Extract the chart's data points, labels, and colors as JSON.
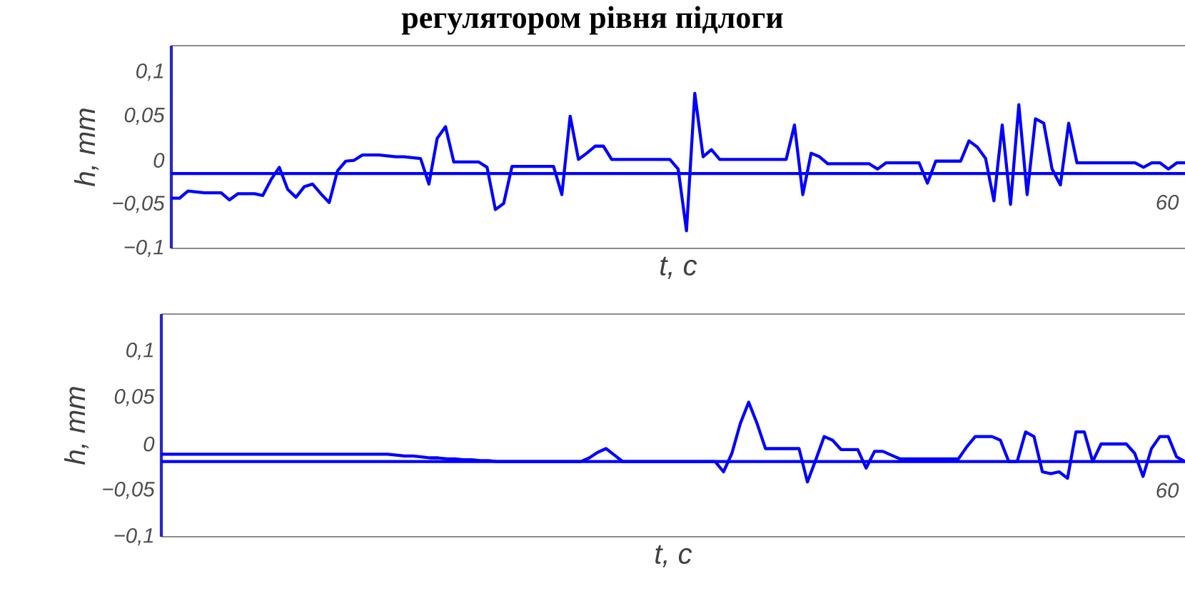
{
  "chart_data": [
    {
      "type": "line",
      "title": "регулятором рівня підлоги",
      "xlabel": "t, c",
      "ylabel": "h, mm",
      "annotations": [
        "60"
      ],
      "ylim": [
        -0.1,
        0.13
      ],
      "categories": [
        null,
        null,
        null,
        null,
        null,
        null,
        null,
        null,
        null,
        null,
        null,
        null,
        null,
        null,
        null,
        null,
        null,
        null,
        null,
        null,
        null,
        null,
        null,
        null,
        null,
        null,
        null,
        null,
        null,
        null,
        null,
        null,
        null,
        null,
        null,
        null,
        null,
        null,
        null,
        null,
        null,
        null,
        null,
        null,
        null,
        null,
        null,
        null,
        null,
        null,
        null,
        null,
        null,
        null,
        null,
        null,
        null,
        null,
        null,
        null,
        null,
        null,
        null,
        null,
        null,
        null,
        null,
        null,
        null,
        null,
        null,
        null,
        null,
        null,
        null,
        null,
        null,
        null,
        null,
        null,
        null,
        null,
        null,
        null,
        null,
        null,
        null,
        null,
        null,
        null,
        null,
        null,
        null,
        null,
        null,
        null,
        null,
        null,
        null,
        null,
        null,
        null,
        null,
        null,
        null,
        null,
        null,
        null,
        null,
        null,
        null,
        null,
        null,
        null,
        null,
        null,
        null,
        null,
        null,
        null,
        null,
        null,
        null
      ],
      "yticks": [
        {
          "value": -0.1,
          "label": "−0,1"
        },
        {
          "value": -0.05,
          "label": "−0,05"
        },
        {
          "value": 0,
          "label": "0"
        },
        {
          "value": 0.05,
          "label": "0,05"
        },
        {
          "value": 0.1,
          "label": "0,1"
        }
      ],
      "ref_lines": [
        {
          "axis": "y",
          "value": -0.015,
          "color": "#0000ff"
        }
      ],
      "series": [
        {
          "color": "#0000ff",
          "values": [
            -0.043,
            -0.043,
            -0.035,
            -0.036,
            -0.037,
            -0.037,
            -0.037,
            -0.045,
            -0.038,
            -0.038,
            -0.038,
            -0.04,
            -0.022,
            -0.008,
            -0.033,
            -0.042,
            -0.03,
            -0.027,
            -0.038,
            -0.048,
            -0.012,
            -0.001,
            0,
            0.006,
            0.006,
            0.006,
            0.005,
            0.004,
            0.004,
            0.003,
            0.002,
            -0.027,
            0.025,
            0.038,
            -0.002,
            -0.002,
            -0.002,
            -0.002,
            -0.008,
            -0.056,
            -0.049,
            -0.007,
            -0.007,
            -0.007,
            -0.007,
            -0.007,
            -0.007,
            -0.039,
            0.05,
            0.001,
            0.008,
            0.016,
            0.016,
            0.001,
            0.001,
            0.001,
            0.001,
            0.001,
            0.001,
            0.001,
            0.001,
            -0.01,
            -0.08,
            0.076,
            0.004,
            0.012,
            0.001,
            0.001,
            0.001,
            0.001,
            0.001,
            0.001,
            0.001,
            0.001,
            0.001,
            0.04,
            -0.039,
            0.008,
            0.004,
            -0.004,
            -0.004,
            -0.004,
            -0.004,
            -0.004,
            -0.004,
            -0.01,
            -0.003,
            -0.003,
            -0.003,
            -0.003,
            -0.003,
            -0.026,
            -0.001,
            -0.001,
            -0.001,
            -0.001,
            0.022,
            0.015,
            0.002,
            -0.046,
            0.04,
            -0.05,
            0.063,
            -0.039,
            0.047,
            0.042,
            -0.01,
            -0.028,
            0.042,
            -0.003,
            -0.003,
            -0.003,
            -0.003,
            -0.003,
            -0.003,
            -0.003,
            -0.003,
            -0.008,
            -0.003,
            -0.003,
            -0.01,
            -0.003,
            -0.003
          ]
        }
      ]
    },
    {
      "type": "line",
      "xlabel": "t, c",
      "ylabel": "h, mm",
      "annotations": [
        "60"
      ],
      "ylim": [
        -0.1,
        0.14
      ],
      "categories": [
        null,
        null,
        null,
        null,
        null,
        null,
        null,
        null,
        null,
        null,
        null,
        null,
        null,
        null,
        null,
        null,
        null,
        null,
        null,
        null,
        null,
        null,
        null,
        null,
        null,
        null,
        null,
        null,
        null,
        null,
        null,
        null,
        null,
        null,
        null,
        null,
        null,
        null,
        null,
        null,
        null,
        null,
        null,
        null,
        null,
        null,
        null,
        null,
        null,
        null,
        null,
        null,
        null,
        null,
        null,
        null,
        null,
        null,
        null,
        null,
        null,
        null,
        null,
        null,
        null,
        null,
        null,
        null,
        null,
        null,
        null,
        null,
        null,
        null,
        null,
        null,
        null,
        null,
        null,
        null,
        null,
        null,
        null,
        null,
        null,
        null,
        null,
        null,
        null,
        null,
        null,
        null,
        null,
        null,
        null,
        null,
        null,
        null,
        null,
        null,
        null,
        null,
        null,
        null,
        null,
        null,
        null,
        null,
        null,
        null,
        null,
        null,
        null,
        null,
        null,
        null,
        null,
        null,
        null,
        null,
        null,
        null,
        null
      ],
      "yticks": [
        {
          "value": -0.1,
          "label": "−0,1"
        },
        {
          "value": -0.05,
          "label": "−0,05"
        },
        {
          "value": 0,
          "label": "0"
        },
        {
          "value": 0.05,
          "label": "0,05"
        },
        {
          "value": 0.1,
          "label": "0,1"
        }
      ],
      "ref_lines": [
        {
          "axis": "y",
          "value": -0.019,
          "color": "#0000ff"
        }
      ],
      "series": [
        {
          "color": "#0000ff",
          "values": [
            -0.011,
            -0.011,
            -0.011,
            -0.011,
            -0.011,
            -0.011,
            -0.011,
            -0.011,
            -0.011,
            -0.011,
            -0.011,
            -0.011,
            -0.011,
            -0.011,
            -0.011,
            -0.011,
            -0.011,
            -0.011,
            -0.011,
            -0.011,
            -0.011,
            -0.011,
            -0.011,
            -0.011,
            -0.011,
            -0.011,
            -0.011,
            -0.011,
            -0.012,
            -0.013,
            -0.013,
            -0.014,
            -0.015,
            -0.015,
            -0.016,
            -0.016,
            -0.017,
            -0.017,
            -0.018,
            -0.018,
            -0.019,
            -0.019,
            -0.019,
            -0.019,
            -0.019,
            -0.019,
            -0.019,
            -0.019,
            -0.019,
            -0.019,
            -0.019,
            -0.015,
            -0.009,
            -0.005,
            -0.012,
            -0.019,
            -0.019,
            -0.019,
            -0.019,
            -0.019,
            -0.019,
            -0.019,
            -0.019,
            -0.019,
            -0.019,
            -0.019,
            -0.019,
            -0.03,
            -0.01,
            0.022,
            0.045,
            0.022,
            -0.005,
            -0.005,
            -0.005,
            -0.005,
            -0.005,
            -0.041,
            -0.017,
            0.008,
            0.004,
            -0.006,
            -0.006,
            -0.006,
            -0.026,
            -0.008,
            -0.008,
            -0.012,
            -0.016,
            -0.016,
            -0.016,
            -0.016,
            -0.016,
            -0.016,
            -0.016,
            -0.016,
            -0.003,
            0.008,
            0.008,
            0.008,
            0.004,
            -0.019,
            -0.019,
            0.013,
            0.008,
            -0.03,
            -0.032,
            -0.03,
            -0.037,
            0.013,
            0.013,
            -0.019,
            0,
            0,
            0,
            0,
            -0.01,
            -0.035,
            -0.005,
            0.008,
            0.008,
            -0.014,
            -0.019
          ]
        }
      ]
    }
  ]
}
